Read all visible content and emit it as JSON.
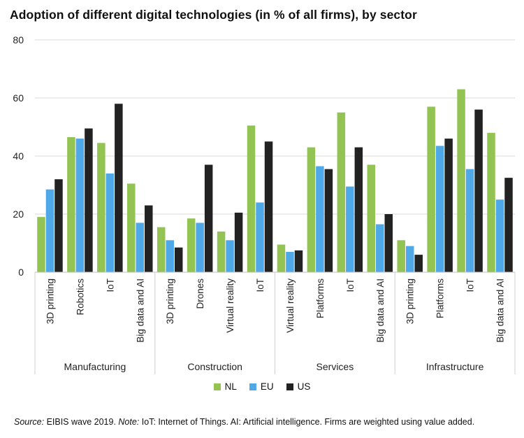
{
  "title": "Adoption of different digital technologies (in % of all firms), by sector",
  "source": {
    "source_label": "Source:",
    "source_text": " EIBIS wave 2019. ",
    "note_label": "Note:",
    "note_text": " IoT: Internet of Things. AI: Artificial intelligence. Firms are weighted using value added."
  },
  "colors": {
    "NL": "#92c353",
    "EU": "#4fa8e8",
    "US": "#222222"
  },
  "chart_data": {
    "type": "bar",
    "title": "Adoption of different digital technologies (in % of all firms), by sector",
    "xlabel": "",
    "ylabel": "",
    "ylim": [
      0,
      80
    ],
    "yticks": [
      0,
      20,
      40,
      60,
      80
    ],
    "grid": true,
    "legend_position": "bottom",
    "groups": [
      {
        "name": "Manufacturing",
        "categories": [
          "3D printing",
          "Robotics",
          "IoT",
          "Big data and AI"
        ]
      },
      {
        "name": "Construction",
        "categories": [
          "3D printing",
          "Drones",
          "Virtual reality",
          "IoT"
        ]
      },
      {
        "name": "Services",
        "categories": [
          "Virtual reality",
          "Platforms",
          "IoT",
          "Big data and AI"
        ]
      },
      {
        "name": "Infrastructure",
        "categories": [
          "3D printing",
          "Platforms",
          "IoT",
          "Big data and AI"
        ]
      }
    ],
    "series": [
      {
        "name": "NL",
        "values": [
          19,
          46.5,
          44.5,
          30.5,
          15.5,
          18.5,
          14,
          50.5,
          9.5,
          43,
          55,
          37,
          11,
          57,
          63,
          48
        ]
      },
      {
        "name": "EU",
        "values": [
          28.5,
          46,
          34,
          17,
          11,
          17,
          11,
          24,
          7,
          36.5,
          29.5,
          16.5,
          9,
          43.5,
          35.5,
          25
        ]
      },
      {
        "name": "US",
        "values": [
          32,
          49.5,
          58,
          23,
          8.5,
          37,
          20.5,
          45,
          7.5,
          35.5,
          43,
          20,
          6,
          46,
          56,
          32.5
        ]
      }
    ]
  }
}
